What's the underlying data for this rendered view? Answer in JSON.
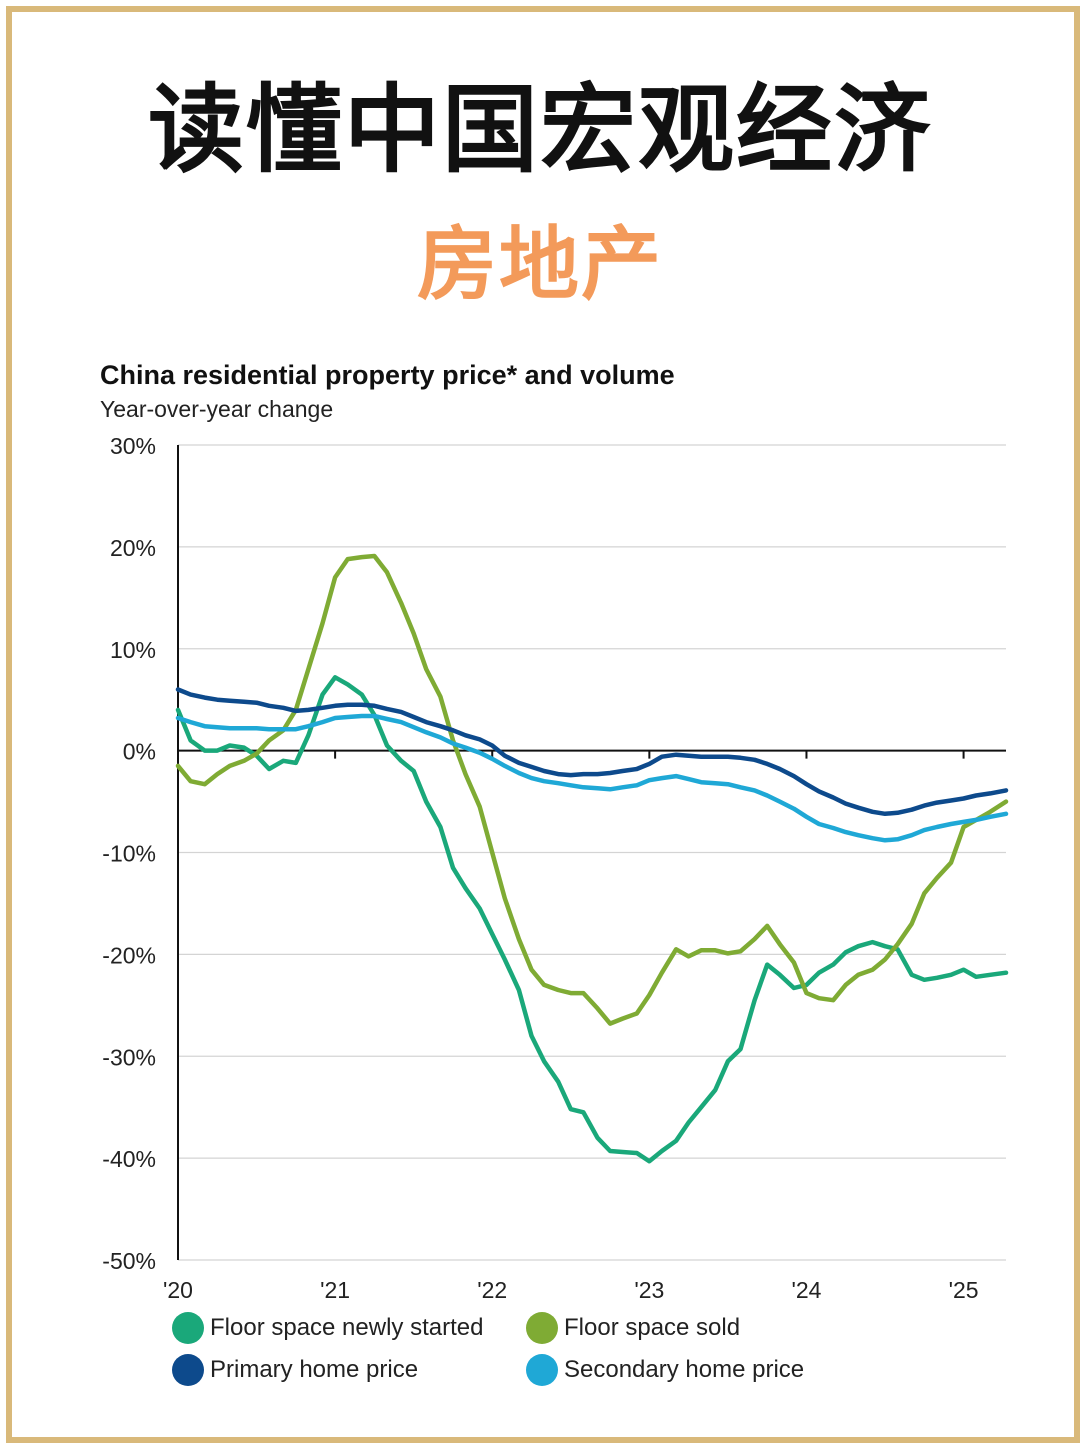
{
  "header": {
    "title": "读懂中国宏观经济",
    "subtitle": "房地产"
  },
  "colors": {
    "frame": "#d9b97a",
    "subtitle": "#f39a5a",
    "newly_started": "#1aa87a",
    "sold": "#7fab34",
    "primary": "#0d4a8c",
    "secondary": "#1fa8d6"
  },
  "chart_data": {
    "type": "line",
    "title": "China residential property price* and volume",
    "subtitle": "Year-over-year change",
    "xlabel": "",
    "ylabel": "",
    "ylim": [
      -50,
      30
    ],
    "yticks": [
      "30%",
      "20%",
      "10%",
      "0%",
      "-10%",
      "-20%",
      "-30%",
      "-40%",
      "-50%"
    ],
    "xticks": [
      "'20",
      "'21",
      "'22",
      "'23",
      "'24",
      "'25"
    ],
    "xlim": [
      2020.0,
      2025.27
    ],
    "grid": true,
    "legend_position": "bottom",
    "series": [
      {
        "name": "Floor space newly started",
        "color": "#1aa87a",
        "points": [
          [
            2020.0,
            4
          ],
          [
            2020.08,
            1
          ],
          [
            2020.17,
            0
          ],
          [
            2020.25,
            0
          ],
          [
            2020.33,
            0.5
          ],
          [
            2020.42,
            0.3
          ],
          [
            2020.5,
            -0.5
          ],
          [
            2020.58,
            -1.8
          ],
          [
            2020.67,
            -1
          ],
          [
            2020.75,
            -1.2
          ],
          [
            2020.83,
            1.5
          ],
          [
            2020.92,
            5.5
          ],
          [
            2021.0,
            7.2
          ],
          [
            2021.08,
            6.5
          ],
          [
            2021.17,
            5.5
          ],
          [
            2021.25,
            3.5
          ],
          [
            2021.33,
            0.5
          ],
          [
            2021.42,
            -1
          ],
          [
            2021.5,
            -2
          ],
          [
            2021.58,
            -5
          ],
          [
            2021.67,
            -7.5
          ],
          [
            2021.75,
            -11.5
          ],
          [
            2021.83,
            -13.5
          ],
          [
            2021.92,
            -15.5
          ],
          [
            2022.0,
            -18
          ],
          [
            2022.08,
            -20.5
          ],
          [
            2022.17,
            -23.5
          ],
          [
            2022.25,
            -28
          ],
          [
            2022.33,
            -30.5
          ],
          [
            2022.42,
            -32.5
          ],
          [
            2022.5,
            -35.2
          ],
          [
            2022.58,
            -35.5
          ],
          [
            2022.67,
            -38
          ],
          [
            2022.75,
            -39.3
          ],
          [
            2022.83,
            -39.4
          ],
          [
            2022.92,
            -39.5
          ],
          [
            2023.0,
            -40.3
          ],
          [
            2023.08,
            -39.3
          ],
          [
            2023.17,
            -38.3
          ],
          [
            2023.25,
            -36.5
          ],
          [
            2023.33,
            -35
          ],
          [
            2023.42,
            -33.3
          ],
          [
            2023.5,
            -30.5
          ],
          [
            2023.58,
            -29.3
          ],
          [
            2023.67,
            -24.5
          ],
          [
            2023.75,
            -21
          ],
          [
            2023.83,
            -22
          ],
          [
            2023.92,
            -23.3
          ],
          [
            2024.0,
            -23
          ],
          [
            2024.08,
            -21.8
          ],
          [
            2024.17,
            -21
          ],
          [
            2024.25,
            -19.8
          ],
          [
            2024.33,
            -19.2
          ],
          [
            2024.42,
            -18.8
          ],
          [
            2024.5,
            -19.2
          ],
          [
            2024.58,
            -19.5
          ],
          [
            2024.67,
            -22
          ],
          [
            2024.75,
            -22.5
          ],
          [
            2024.83,
            -22.3
          ],
          [
            2024.92,
            -22
          ],
          [
            2025.0,
            -21.5
          ],
          [
            2025.08,
            -22.2
          ],
          [
            2025.17,
            -22
          ],
          [
            2025.27,
            -21.8
          ]
        ]
      },
      {
        "name": "Floor space sold",
        "color": "#7fab34",
        "points": [
          [
            2020.0,
            -1.5
          ],
          [
            2020.08,
            -3
          ],
          [
            2020.17,
            -3.3
          ],
          [
            2020.25,
            -2.3
          ],
          [
            2020.33,
            -1.5
          ],
          [
            2020.42,
            -1
          ],
          [
            2020.5,
            -0.3
          ],
          [
            2020.58,
            1
          ],
          [
            2020.67,
            2
          ],
          [
            2020.75,
            4
          ],
          [
            2020.83,
            8
          ],
          [
            2020.92,
            12.5
          ],
          [
            2021.0,
            17
          ],
          [
            2021.08,
            18.8
          ],
          [
            2021.17,
            19
          ],
          [
            2021.25,
            19.1
          ],
          [
            2021.33,
            17.5
          ],
          [
            2021.42,
            14.5
          ],
          [
            2021.5,
            11.5
          ],
          [
            2021.58,
            8
          ],
          [
            2021.67,
            5.3
          ],
          [
            2021.75,
            1
          ],
          [
            2021.83,
            -2.3
          ],
          [
            2021.92,
            -5.5
          ],
          [
            2022.0,
            -10
          ],
          [
            2022.08,
            -14.5
          ],
          [
            2022.17,
            -18.5
          ],
          [
            2022.25,
            -21.5
          ],
          [
            2022.33,
            -23
          ],
          [
            2022.42,
            -23.5
          ],
          [
            2022.5,
            -23.8
          ],
          [
            2022.58,
            -23.8
          ],
          [
            2022.67,
            -25.3
          ],
          [
            2022.75,
            -26.8
          ],
          [
            2022.83,
            -26.3
          ],
          [
            2022.92,
            -25.8
          ],
          [
            2023.0,
            -24
          ],
          [
            2023.08,
            -21.8
          ],
          [
            2023.17,
            -19.5
          ],
          [
            2023.25,
            -20.2
          ],
          [
            2023.33,
            -19.6
          ],
          [
            2023.42,
            -19.6
          ],
          [
            2023.5,
            -19.9
          ],
          [
            2023.58,
            -19.7
          ],
          [
            2023.67,
            -18.5
          ],
          [
            2023.75,
            -17.2
          ],
          [
            2023.83,
            -19
          ],
          [
            2023.92,
            -20.8
          ],
          [
            2024.0,
            -23.8
          ],
          [
            2024.08,
            -24.3
          ],
          [
            2024.17,
            -24.5
          ],
          [
            2024.25,
            -23
          ],
          [
            2024.33,
            -22
          ],
          [
            2024.42,
            -21.5
          ],
          [
            2024.5,
            -20.5
          ],
          [
            2024.58,
            -19
          ],
          [
            2024.67,
            -17
          ],
          [
            2024.75,
            -14
          ],
          [
            2024.83,
            -12.5
          ],
          [
            2024.92,
            -11
          ],
          [
            2025.0,
            -7.5
          ],
          [
            2025.08,
            -6.8
          ],
          [
            2025.17,
            -6
          ],
          [
            2025.27,
            -5
          ]
        ]
      },
      {
        "name": "Primary home price",
        "color": "#0d4a8c",
        "points": [
          [
            2020.0,
            6
          ],
          [
            2020.08,
            5.5
          ],
          [
            2020.17,
            5.2
          ],
          [
            2020.25,
            5
          ],
          [
            2020.33,
            4.9
          ],
          [
            2020.42,
            4.8
          ],
          [
            2020.5,
            4.7
          ],
          [
            2020.58,
            4.4
          ],
          [
            2020.67,
            4.2
          ],
          [
            2020.75,
            3.9
          ],
          [
            2020.83,
            4
          ],
          [
            2020.92,
            4.2
          ],
          [
            2021.0,
            4.4
          ],
          [
            2021.08,
            4.5
          ],
          [
            2021.17,
            4.5
          ],
          [
            2021.25,
            4.4
          ],
          [
            2021.33,
            4.1
          ],
          [
            2021.42,
            3.8
          ],
          [
            2021.5,
            3.3
          ],
          [
            2021.58,
            2.8
          ],
          [
            2021.67,
            2.4
          ],
          [
            2021.75,
            2
          ],
          [
            2021.83,
            1.5
          ],
          [
            2021.92,
            1.1
          ],
          [
            2022.0,
            0.5
          ],
          [
            2022.08,
            -0.5
          ],
          [
            2022.17,
            -1.2
          ],
          [
            2022.25,
            -1.6
          ],
          [
            2022.33,
            -2
          ],
          [
            2022.42,
            -2.3
          ],
          [
            2022.5,
            -2.4
          ],
          [
            2022.58,
            -2.3
          ],
          [
            2022.67,
            -2.3
          ],
          [
            2022.75,
            -2.2
          ],
          [
            2022.83,
            -2
          ],
          [
            2022.92,
            -1.8
          ],
          [
            2023.0,
            -1.3
          ],
          [
            2023.08,
            -0.6
          ],
          [
            2023.17,
            -0.4
          ],
          [
            2023.25,
            -0.5
          ],
          [
            2023.33,
            -0.6
          ],
          [
            2023.42,
            -0.6
          ],
          [
            2023.5,
            -0.6
          ],
          [
            2023.58,
            -0.7
          ],
          [
            2023.67,
            -0.9
          ],
          [
            2023.75,
            -1.3
          ],
          [
            2023.83,
            -1.8
          ],
          [
            2023.92,
            -2.5
          ],
          [
            2024.0,
            -3.3
          ],
          [
            2024.08,
            -4
          ],
          [
            2024.17,
            -4.6
          ],
          [
            2024.25,
            -5.2
          ],
          [
            2024.33,
            -5.6
          ],
          [
            2024.42,
            -6
          ],
          [
            2024.5,
            -6.2
          ],
          [
            2024.58,
            -6.1
          ],
          [
            2024.67,
            -5.8
          ],
          [
            2024.75,
            -5.4
          ],
          [
            2024.83,
            -5.1
          ],
          [
            2024.92,
            -4.9
          ],
          [
            2025.0,
            -4.7
          ],
          [
            2025.08,
            -4.4
          ],
          [
            2025.17,
            -4.2
          ],
          [
            2025.27,
            -3.9
          ]
        ]
      },
      {
        "name": "Secondary home price",
        "color": "#1fa8d6",
        "points": [
          [
            2020.0,
            3.2
          ],
          [
            2020.08,
            2.8
          ],
          [
            2020.17,
            2.4
          ],
          [
            2020.25,
            2.3
          ],
          [
            2020.33,
            2.2
          ],
          [
            2020.42,
            2.2
          ],
          [
            2020.5,
            2.2
          ],
          [
            2020.58,
            2.1
          ],
          [
            2020.67,
            2.1
          ],
          [
            2020.75,
            2.1
          ],
          [
            2020.83,
            2.4
          ],
          [
            2020.92,
            2.8
          ],
          [
            2021.0,
            3.2
          ],
          [
            2021.08,
            3.3
          ],
          [
            2021.17,
            3.4
          ],
          [
            2021.25,
            3.4
          ],
          [
            2021.33,
            3.1
          ],
          [
            2021.42,
            2.8
          ],
          [
            2021.5,
            2.3
          ],
          [
            2021.58,
            1.8
          ],
          [
            2021.67,
            1.3
          ],
          [
            2021.75,
            0.7
          ],
          [
            2021.83,
            0.3
          ],
          [
            2021.92,
            -0.2
          ],
          [
            2022.0,
            -0.8
          ],
          [
            2022.08,
            -1.5
          ],
          [
            2022.17,
            -2.2
          ],
          [
            2022.25,
            -2.7
          ],
          [
            2022.33,
            -3
          ],
          [
            2022.42,
            -3.2
          ],
          [
            2022.5,
            -3.4
          ],
          [
            2022.58,
            -3.6
          ],
          [
            2022.67,
            -3.7
          ],
          [
            2022.75,
            -3.8
          ],
          [
            2022.83,
            -3.6
          ],
          [
            2022.92,
            -3.4
          ],
          [
            2023.0,
            -2.9
          ],
          [
            2023.08,
            -2.7
          ],
          [
            2023.17,
            -2.5
          ],
          [
            2023.25,
            -2.8
          ],
          [
            2023.33,
            -3.1
          ],
          [
            2023.42,
            -3.2
          ],
          [
            2023.5,
            -3.3
          ],
          [
            2023.58,
            -3.6
          ],
          [
            2023.67,
            -3.9
          ],
          [
            2023.75,
            -4.4
          ],
          [
            2023.83,
            -5
          ],
          [
            2023.92,
            -5.7
          ],
          [
            2024.0,
            -6.5
          ],
          [
            2024.08,
            -7.2
          ],
          [
            2024.17,
            -7.6
          ],
          [
            2024.25,
            -8
          ],
          [
            2024.33,
            -8.3
          ],
          [
            2024.42,
            -8.6
          ],
          [
            2024.5,
            -8.8
          ],
          [
            2024.58,
            -8.7
          ],
          [
            2024.67,
            -8.3
          ],
          [
            2024.75,
            -7.8
          ],
          [
            2024.83,
            -7.5
          ],
          [
            2024.92,
            -7.2
          ],
          [
            2025.0,
            -7
          ],
          [
            2025.08,
            -6.8
          ],
          [
            2025.17,
            -6.5
          ],
          [
            2025.27,
            -6.2
          ]
        ]
      }
    ]
  }
}
